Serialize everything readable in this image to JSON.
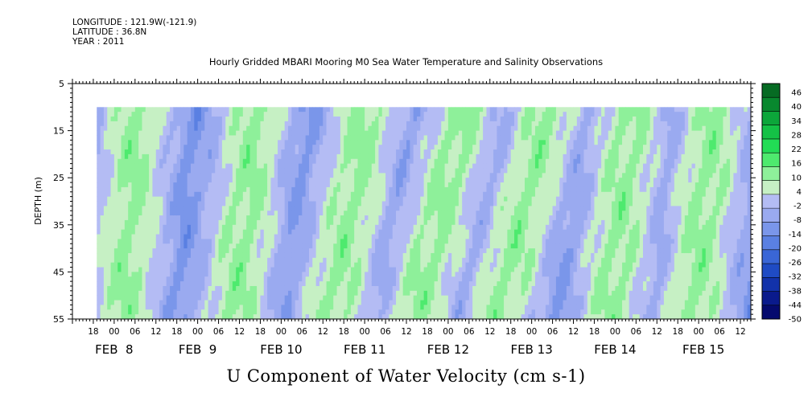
{
  "header": {
    "longitude": "LONGITUDE : 121.9W(-121.9)",
    "latitude": "LATITUDE : 36.8N",
    "year": "YEAR : 2011"
  },
  "chart_data": {
    "type": "heatmap",
    "title": "Hourly Gridded MBARI Mooring M0 Sea Water Temperature and Salinity Observations",
    "subtitle": "U Component of Water Velocity (cm s-1)",
    "ylabel": "DEPTH (m)",
    "ylim": [
      5,
      55
    ],
    "y_inverted": true,
    "y_ticks": [
      5,
      15,
      25,
      35,
      45,
      55
    ],
    "data_depth_range": [
      10,
      55
    ],
    "x_start": "FEB 7 12:00",
    "x_end": "FEB 15 15:00",
    "data_time_start": "FEB 7 19:00",
    "hour_ticks": [
      "18",
      "00",
      "06",
      "12",
      "18",
      "00",
      "06",
      "12",
      "18",
      "00",
      "06",
      "12",
      "18",
      "00",
      "06",
      "12",
      "18",
      "00",
      "06",
      "12",
      "18",
      "00",
      "06",
      "12",
      "18",
      "00",
      "06",
      "12",
      "18",
      "00",
      "06",
      "12"
    ],
    "day_labels": [
      "FEB  8",
      "FEB  9",
      "FEB 10",
      "FEB 11",
      "FEB 12",
      "FEB 13",
      "FEB 14",
      "FEB 15"
    ],
    "colorbar": {
      "levels": [
        -50,
        -44,
        -38,
        -32,
        -26,
        -20,
        -14,
        -8,
        -2,
        4,
        10,
        16,
        22,
        28,
        34,
        40,
        46
      ],
      "labels": [
        "46",
        "40",
        "34",
        "28",
        "22",
        "16",
        "10",
        "4",
        "-2",
        "-8",
        "-14",
        "-20",
        "-26",
        "-32",
        "-38",
        "-44",
        "-50"
      ],
      "colors": [
        "#050a6e",
        "#0a1a8c",
        "#1232aa",
        "#1f4bc4",
        "#3a66d6",
        "#5a80e2",
        "#7a96ea",
        "#9aaaf0",
        "#b4bcf4",
        "#c6f0c4",
        "#8ef09a",
        "#4eea6e",
        "#22dd55",
        "#14c246",
        "#0ca63a",
        "#08882e",
        "#066b23"
      ]
    },
    "band_centers_hours": [
      14,
      46,
      74,
      98,
      122,
      154,
      178
    ],
    "surface_band_centers_hours": [
      18,
      52,
      84,
      112,
      136,
      160,
      184
    ],
    "band_values": {
      "max": 12,
      "min": -16
    }
  }
}
